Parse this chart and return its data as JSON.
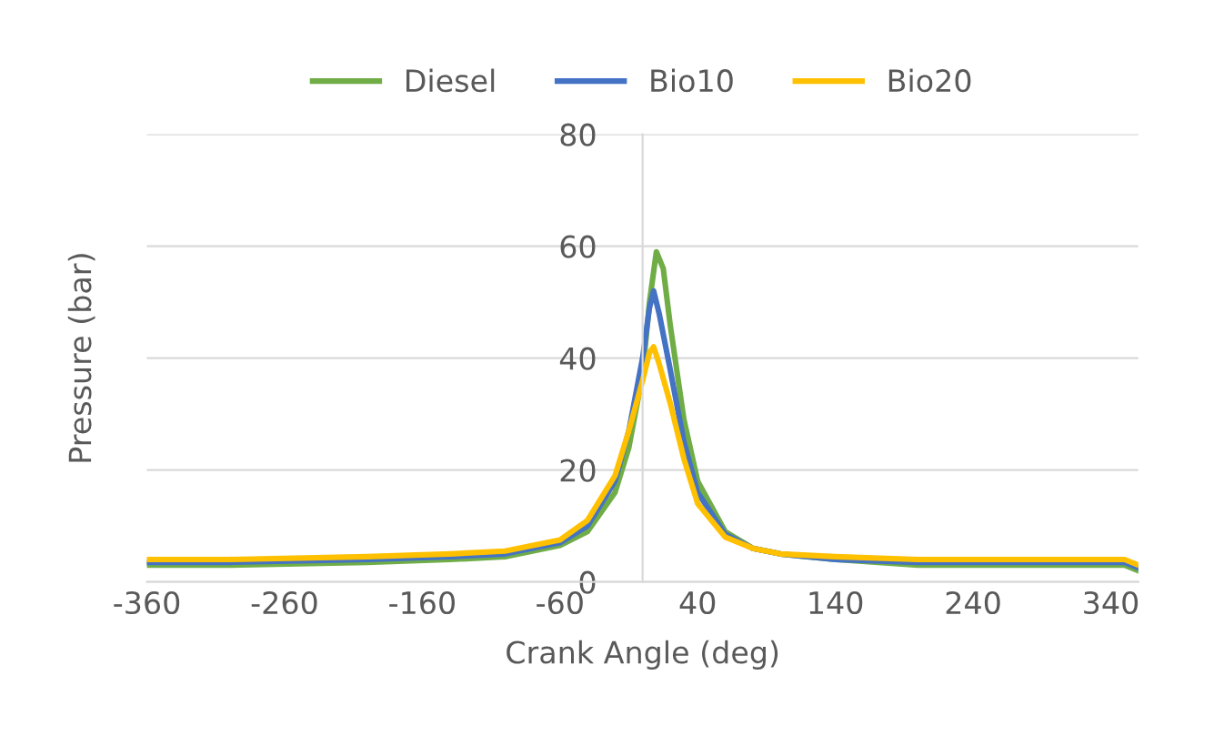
{
  "chart_data": {
    "type": "line",
    "xlabel": "Crank Angle (deg)",
    "ylabel": "Pressure (bar)",
    "xlim": [
      -360,
      360
    ],
    "xticks": [
      -360,
      -260,
      -160,
      -60,
      40,
      140,
      240,
      340
    ],
    "ylim": [
      0,
      80
    ],
    "yticks": [
      0,
      20,
      40,
      60,
      80
    ],
    "grid": "y",
    "legend": "top",
    "marker": "none",
    "line_style": "solid",
    "series": [
      {
        "name": "Diesel",
        "color": "#70ad47",
        "x": [
          -360,
          -300,
          -200,
          -140,
          -100,
          -60,
          -40,
          -20,
          -10,
          0,
          5,
          10,
          15,
          20,
          30,
          40,
          60,
          80,
          100,
          140,
          200,
          240,
          300,
          350,
          360
        ],
        "values": [
          3,
          3,
          3.5,
          4,
          4.5,
          6.5,
          9,
          16,
          24,
          37,
          50,
          59,
          56,
          46,
          29,
          18,
          9,
          6,
          5,
          4,
          3,
          3,
          3,
          3,
          2
        ]
      },
      {
        "name": "Bio10",
        "color": "#4472c4",
        "x": [
          -360,
          -300,
          -200,
          -140,
          -100,
          -60,
          -40,
          -20,
          -10,
          0,
          5,
          8,
          12,
          20,
          30,
          40,
          60,
          80,
          100,
          140,
          200,
          240,
          300,
          350,
          360
        ],
        "values": [
          3.5,
          3.5,
          4,
          4.5,
          5,
          7,
          10,
          18,
          27,
          40,
          49,
          52,
          48,
          38,
          25,
          16,
          8.5,
          6,
          5,
          4,
          3.5,
          3.5,
          3.5,
          3.5,
          2.5
        ]
      },
      {
        "name": "Bio20",
        "color": "#ffc000",
        "x": [
          -360,
          -300,
          -200,
          -140,
          -100,
          -60,
          -40,
          -20,
          -10,
          0,
          5,
          8,
          12,
          20,
          30,
          40,
          60,
          80,
          100,
          140,
          200,
          240,
          300,
          350,
          360
        ],
        "values": [
          4,
          4,
          4.5,
          5,
          5.5,
          7.5,
          11,
          19,
          27,
          36,
          41,
          42,
          39,
          32,
          22,
          14,
          8,
          6,
          5,
          4.5,
          4,
          4,
          4,
          4,
          3
        ]
      }
    ]
  }
}
